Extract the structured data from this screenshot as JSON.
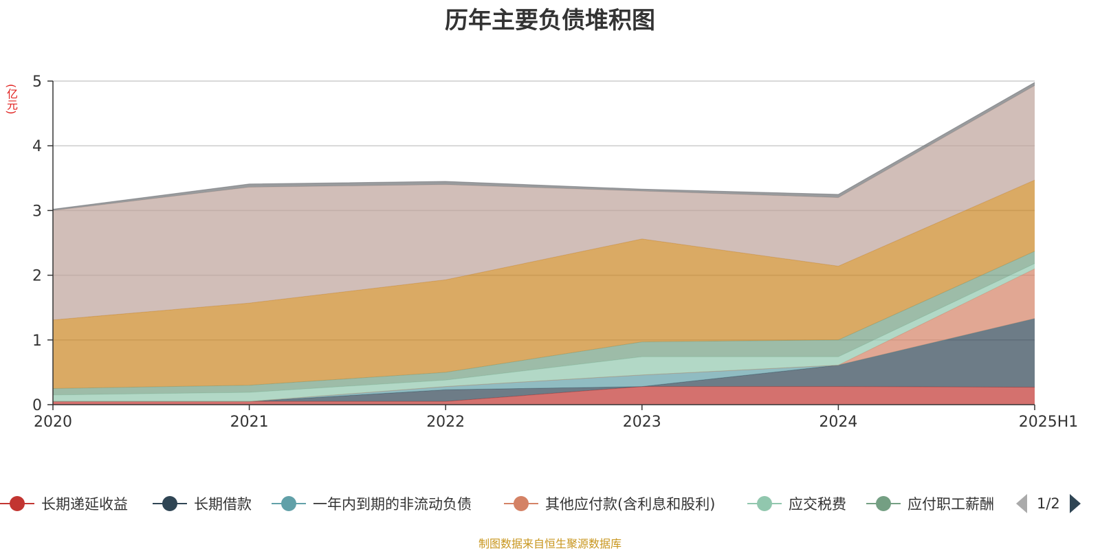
{
  "title": "历年主要负债堆积图",
  "unit_label": "(亿元)",
  "source_text": "制图数据来自恒生聚源数据库",
  "legend": {
    "items": [
      {
        "label": "长期递延收益",
        "color": "#c23531"
      },
      {
        "label": "长期借款",
        "color": "#2f4554"
      },
      {
        "label": "一年内到期的非流动负债",
        "color": "#61a0a8"
      },
      {
        "label": "其他应付款(含利息和股利)",
        "color": "#d48265"
      },
      {
        "label": "应交税费",
        "color": "#91c7ae"
      },
      {
        "label": "应付职工薪酬",
        "color": "#749f83"
      }
    ],
    "page_indicator": "1/2"
  },
  "chart_data": {
    "type": "area",
    "stacked": true,
    "title": "历年主要负债堆积图",
    "ylabel": "(亿元)",
    "x": [
      "2020",
      "2021",
      "2022",
      "2023",
      "2024",
      "2025H1"
    ],
    "ylim": [
      0,
      5
    ],
    "yticks": [
      0,
      1,
      2,
      3,
      4,
      5
    ],
    "grid": true,
    "series": [
      {
        "name": "长期递延收益",
        "color": "#c23531",
        "values": [
          0.05,
          0.05,
          0.05,
          0.28,
          0.28,
          0.27
        ]
      },
      {
        "name": "长期借款",
        "color": "#2f4554",
        "values": [
          0.0,
          0.0,
          0.18,
          0.0,
          0.33,
          1.06
        ]
      },
      {
        "name": "一年内到期的非流动负债",
        "color": "#61a0a8",
        "values": [
          0.0,
          0.0,
          0.05,
          0.18,
          0.0,
          0.0
        ]
      },
      {
        "name": "其他应付款(含利息和股利)",
        "color": "#d48265",
        "values": [
          0.0,
          0.0,
          0.0,
          0.0,
          0.0,
          0.77
        ]
      },
      {
        "name": "应交税费",
        "color": "#91c7ae",
        "values": [
          0.1,
          0.14,
          0.1,
          0.28,
          0.13,
          0.08
        ]
      },
      {
        "name": "应付职工薪酬",
        "color": "#749f83",
        "values": [
          0.1,
          0.11,
          0.12,
          0.23,
          0.26,
          0.19
        ]
      },
      {
        "name": "",
        "color": "#ca8622",
        "values": [
          1.06,
          1.27,
          1.43,
          1.59,
          1.14,
          1.1
        ]
      },
      {
        "name": "",
        "color": "#bda29a",
        "values": [
          1.69,
          1.79,
          1.47,
          0.74,
          1.06,
          1.46
        ]
      },
      {
        "name": "",
        "color": "#6e7074",
        "values": [
          0.02,
          0.05,
          0.05,
          0.03,
          0.05,
          0.05
        ]
      }
    ]
  }
}
